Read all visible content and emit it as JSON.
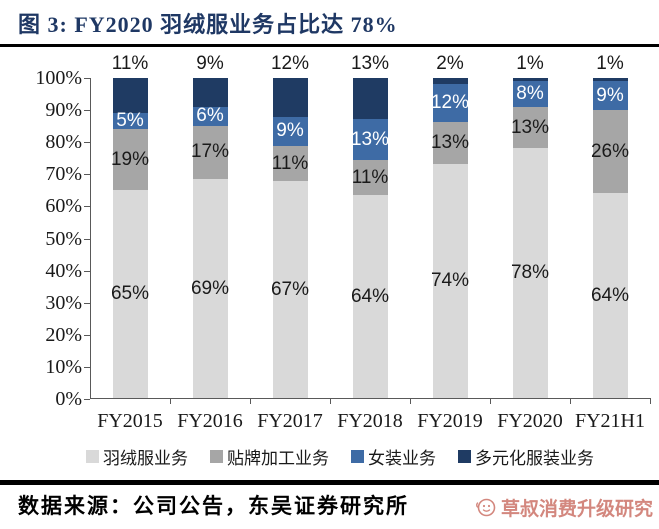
{
  "header": {
    "title": "图 3: FY2020 羽绒服业务占比达 78%",
    "title_color": "#1f3864"
  },
  "chart_data": {
    "type": "bar",
    "stacked": true,
    "percent_stacked": true,
    "title": "FY2020 羽绒服业务占比达 78%",
    "categories": [
      "FY2015",
      "FY2016",
      "FY2017",
      "FY2018",
      "FY2019",
      "FY2020",
      "FY21H1"
    ],
    "series": [
      {
        "name": "羽绒服业务",
        "color": "#d9d9d9",
        "label_color": "#1a1a1a",
        "label_position": "inside",
        "values": [
          65,
          69,
          67,
          64,
          74,
          78,
          64
        ]
      },
      {
        "name": "贴牌加工业务",
        "color": "#a6a6a6",
        "label_color": "#1a1a1a",
        "label_position": "inside",
        "values": [
          19,
          17,
          11,
          11,
          13,
          13,
          26
        ]
      },
      {
        "name": "女装业务",
        "color": "#3e6ba5",
        "label_color": "#ffffff",
        "label_position": "inside",
        "values": [
          5,
          6,
          9,
          13,
          12,
          8,
          9
        ]
      },
      {
        "name": "多元化服装业务",
        "color": "#1f3b63",
        "label_color": "#1a1a1a",
        "label_position": "above",
        "values": [
          11,
          9,
          12,
          13,
          2,
          1,
          1
        ]
      }
    ],
    "unit": "%",
    "ylim": [
      0,
      100
    ],
    "yticks": [
      "100%",
      "90%",
      "80%",
      "70%",
      "60%",
      "50%",
      "40%",
      "30%",
      "20%",
      "10%",
      "0%"
    ],
    "grid": false,
    "legend_position": "bottom",
    "axis_color": "#595959"
  },
  "footer": {
    "source": "数据来源：公司公告，东吴证券研究所",
    "watermark": "草叔消费升级研究",
    "watermark_color": "#c96a5e"
  }
}
